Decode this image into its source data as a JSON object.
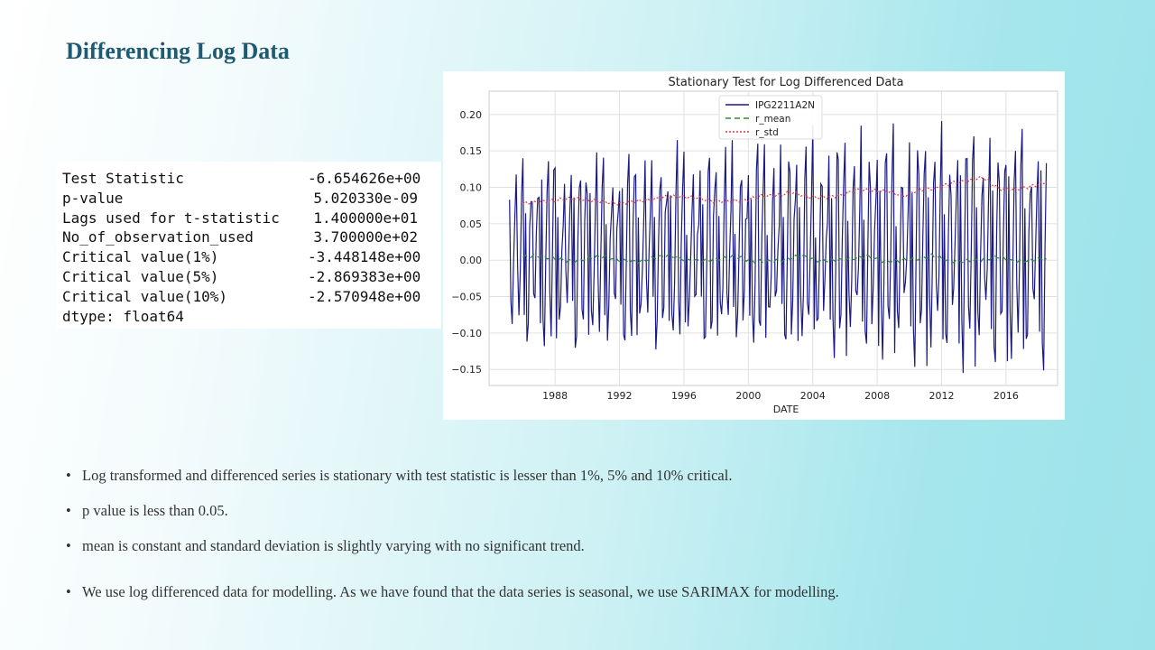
{
  "slide": {
    "title": "Differencing Log Data"
  },
  "adf_results": [
    {
      "label": "Test Statistic",
      "value": "-6.654626e+00"
    },
    {
      "label": "p-value",
      "value": "5.020330e-09"
    },
    {
      "label": "Lags used for t-statistic",
      "value": "1.400000e+01"
    },
    {
      "label": "No_of_observation_used",
      "value": "3.700000e+02"
    },
    {
      "label": "Critical value(1%)",
      "value": "-3.448148e+00"
    },
    {
      "label": "Critical value(5%)",
      "value": "-2.869383e+00"
    },
    {
      "label": "Critical value(10%)",
      "value": "-2.570948e+00"
    }
  ],
  "adf_dtype": "dtype: float64",
  "bullets": [
    "Log transformed  and differenced series is stationary with test statistic is lesser than 1%, 5% and 10% critical.",
    "p value is less than 0.05.",
    "mean is constant and standard deviation is slightly varying  with no significant trend.",
    "We use log differenced data for modelling.  As we have found that the data series is seasonal, we use SARIMAX for modelling."
  ],
  "chart_data": {
    "type": "line",
    "title": "Stationary Test for Log Differenced Data",
    "xlabel": "DATE",
    "ylabel": "",
    "xlim": [
      1983.9,
      2019.2
    ],
    "ylim": [
      -0.172,
      0.232
    ],
    "x_ticks": [
      1988,
      1992,
      1996,
      2000,
      2004,
      2008,
      2012,
      2016
    ],
    "y_ticks": [
      -0.15,
      -0.1,
      -0.05,
      0.0,
      0.05,
      0.1,
      0.15,
      0.2
    ],
    "y_tick_labels": [
      "−0.15",
      "−0.10",
      "−0.05",
      "0.00",
      "0.05",
      "0.10",
      "0.15",
      "0.20"
    ],
    "grid": true,
    "legend_position": "top-center",
    "x_start": 1985.17,
    "x_step": 0.0833333,
    "series": [
      {
        "name": "IPG2211A2N",
        "color": "#1a1a80",
        "style": "solid",
        "monthly_pattern": [
          0.065,
          -0.075,
          -0.09,
          0.0,
          0.09,
          0.11,
          -0.05,
          -0.06,
          0.02,
          0.08,
          0.125,
          -0.085
        ],
        "trend_per_year": 0.0015
      },
      {
        "name": "r_mean",
        "color": "#2e8b2e",
        "style": "dashed",
        "start": 1986.0,
        "values": [
          0.004,
          0.006,
          0.002,
          -0.002,
          0.003,
          0.005,
          0.0,
          -0.003,
          0.004,
          0.006,
          0.001,
          -0.002,
          0.003,
          0.004,
          0.0,
          -0.003,
          0.002,
          0.005,
          0.001,
          -0.002,
          0.003,
          0.004,
          0.0,
          -0.002,
          0.003,
          0.005,
          0.001,
          -0.003,
          0.002,
          0.003,
          0.0,
          -0.002,
          0.004
        ]
      },
      {
        "name": "r_std",
        "color": "#e8363a",
        "style": "dotted",
        "start": 1986.0,
        "values": [
          0.078,
          0.08,
          0.082,
          0.085,
          0.083,
          0.08,
          0.078,
          0.08,
          0.083,
          0.086,
          0.088,
          0.085,
          0.082,
          0.08,
          0.083,
          0.087,
          0.09,
          0.092,
          0.088,
          0.085,
          0.09,
          0.095,
          0.097,
          0.093,
          0.09,
          0.095,
          0.1,
          0.104,
          0.11,
          0.112,
          0.1,
          0.095,
          0.103,
          0.105
        ]
      }
    ]
  }
}
